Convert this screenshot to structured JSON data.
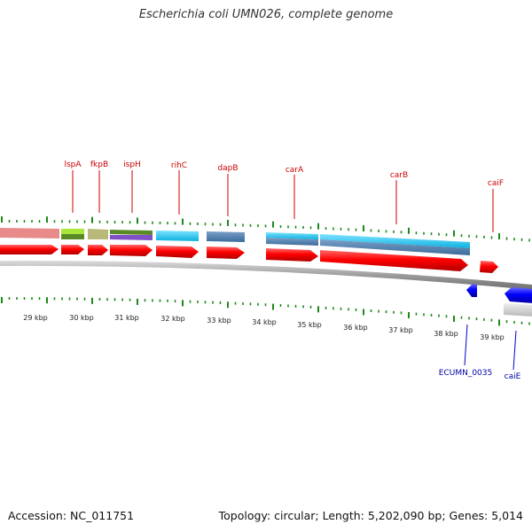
{
  "title": "Escherichia coli UMN026, complete genome",
  "footer": {
    "accession": "Accession: NC_011751",
    "summary": "Topology: circular; Length: 5,202,090 bp; Genes: 5,014"
  },
  "colors": {
    "forward_gene": "#ff0000",
    "reverse_gene": "#0000ff",
    "forward_label": "#cc0000",
    "reverse_label": "#0000aa",
    "tick_green": "#1a8a1a"
  },
  "scale_labels": [
    "29 kbp",
    "30 kbp",
    "31 kbp",
    "32 kbp",
    "33 kbp",
    "34 kbp",
    "35 kbp",
    "36 kbp",
    "37 kbp",
    "38 kbp",
    "39 kbp"
  ],
  "forward_genes": [
    "lspA",
    "fkpB",
    "ispH",
    "rihC",
    "dapB",
    "carA",
    "carB",
    "caiF"
  ],
  "reverse_genes": [
    "ECUMN_0035",
    "caiE"
  ]
}
